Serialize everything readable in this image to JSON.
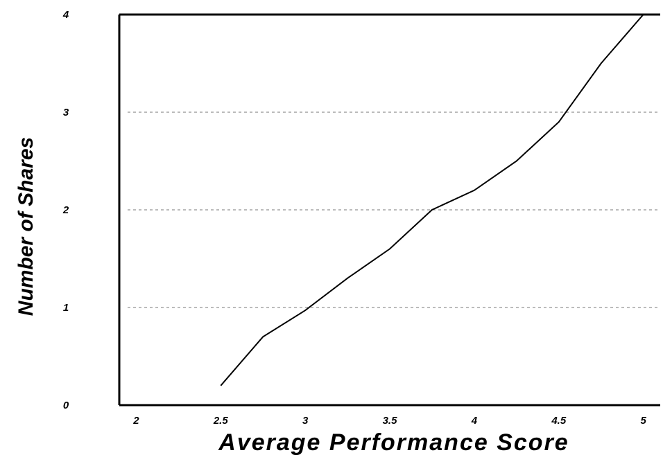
{
  "chart_data": {
    "type": "line",
    "title": "",
    "xlabel": "Average Performance Score",
    "ylabel": "Number of Shares",
    "xlim": [
      1.9,
      5.1
    ],
    "ylim": [
      0,
      4
    ],
    "x_ticks": [
      "2",
      "2.5",
      "3",
      "3.5",
      "4",
      "4.5",
      "5"
    ],
    "y_ticks": [
      "0",
      "1",
      "2",
      "3",
      "4"
    ],
    "grid": "horizontal dashed at 1, 2, 3",
    "series": [
      {
        "x": [
          2.5,
          2.75,
          3.0,
          3.25,
          3.5,
          3.75,
          4.0,
          4.25,
          4.5,
          4.75,
          5.0
        ],
        "y": [
          0.2,
          0.7,
          0.97,
          1.3,
          1.6,
          2.0,
          2.2,
          2.5,
          2.9,
          3.5,
          4.0
        ]
      }
    ],
    "colors": {
      "line": "#000000",
      "grid": "#777777",
      "axes": "#000000"
    }
  }
}
